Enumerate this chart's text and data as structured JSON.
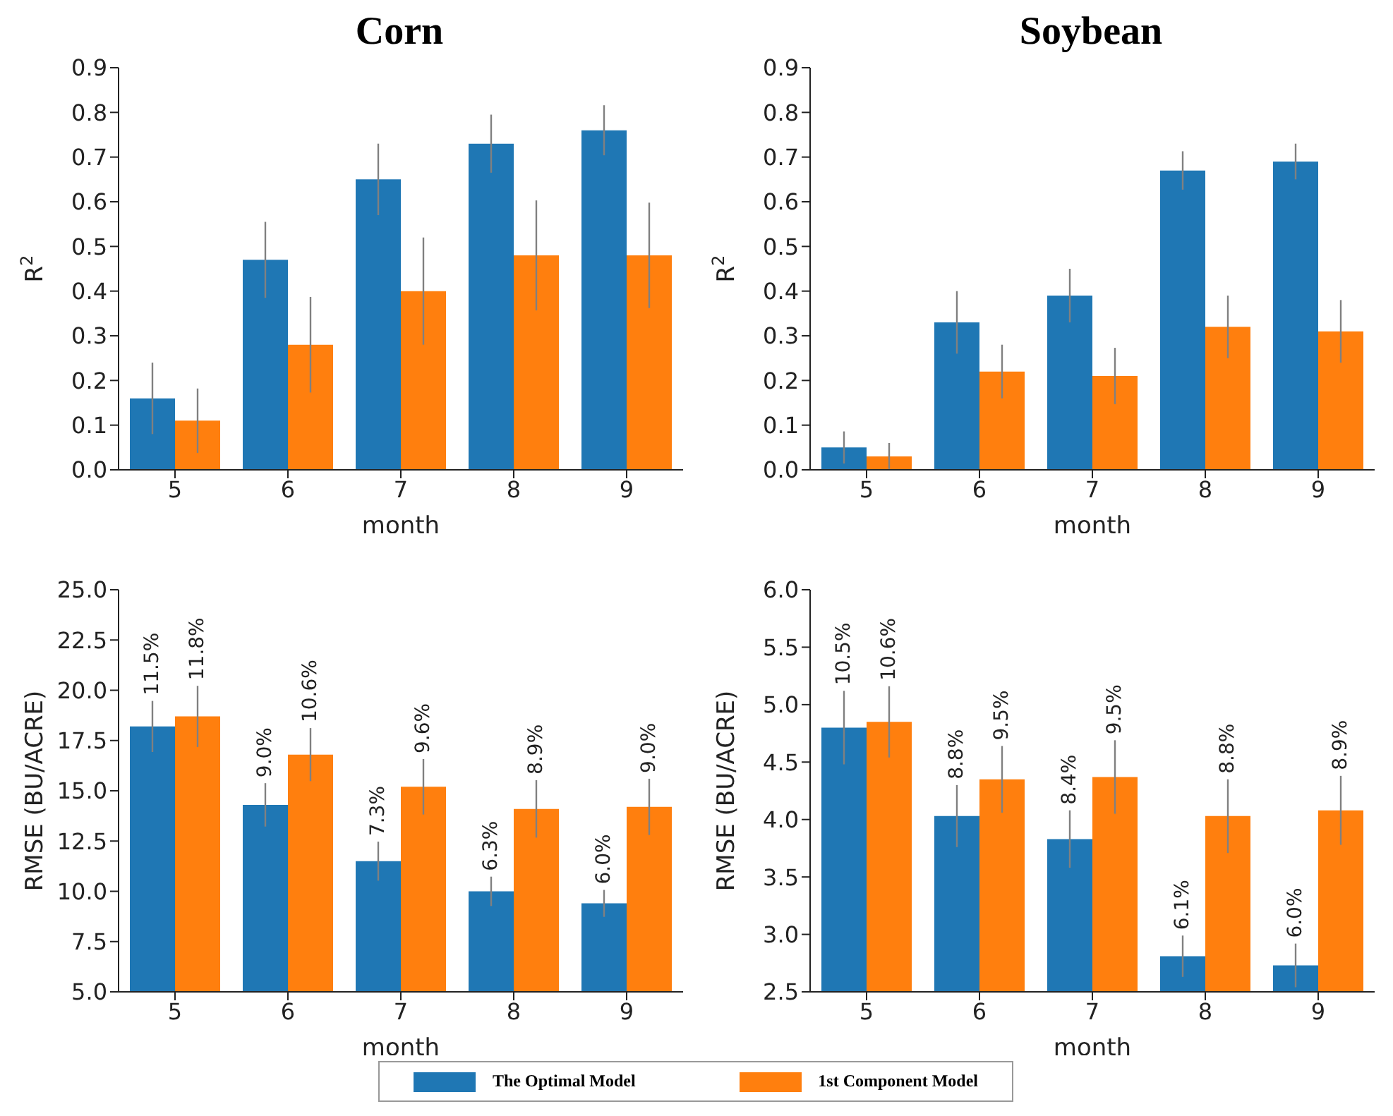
{
  "chart_data": [
    {
      "type": "bar",
      "title": "Corn",
      "xlabel": "month",
      "ylabel": "R$^{2}$",
      "categories": [
        "5",
        "6",
        "7",
        "8",
        "9"
      ],
      "ylim": [
        0,
        0.9
      ],
      "yticks": [
        {
          "value": 0,
          "label": "0.0"
        },
        0.1,
        0.2,
        0.3,
        0.4,
        0.5,
        0.6,
        0.7,
        0.8,
        0.9
      ],
      "series": [
        {
          "color": "#1f77b4",
          "values": [
            0.16,
            0.47,
            0.65,
            0.73,
            0.76
          ],
          "errors": [
            0.08,
            0.085,
            0.08,
            0.065,
            0.056
          ]
        },
        {
          "color": "#ff7f0e",
          "values": [
            0.11,
            0.28,
            0.4,
            0.48,
            0.48
          ],
          "errors": [
            0.072,
            0.107,
            0.12,
            0.123,
            0.118
          ]
        }
      ]
    },
    {
      "type": "bar",
      "title": "Soybean",
      "xlabel": "month",
      "ylabel": "R$^{2}$",
      "categories": [
        "5",
        "6",
        "7",
        "8",
        "9"
      ],
      "ylim": [
        0,
        0.9
      ],
      "yticks": [
        {
          "value": 0,
          "label": "0.0"
        },
        0.1,
        0.2,
        0.3,
        0.4,
        0.5,
        0.6,
        0.7,
        0.8,
        0.9
      ],
      "series": [
        {
          "color": "#1f77b4",
          "values": [
            0.05,
            0.33,
            0.39,
            0.67,
            0.69
          ],
          "errors": [
            0.036,
            0.07,
            0.06,
            0.043,
            0.04
          ]
        },
        {
          "color": "#ff7f0e",
          "values": [
            0.03,
            0.22,
            0.21,
            0.32,
            0.31
          ],
          "errors": [
            0.03,
            0.06,
            0.063,
            0.07,
            0.07
          ]
        }
      ]
    },
    {
      "type": "bar",
      "xlabel": "month",
      "ylabel": "RMSE (BU/ACRE)",
      "categories": [
        "5",
        "6",
        "7",
        "8",
        "9"
      ],
      "annotations": [
        {
          "text": "11.5%",
          "x": "5",
          "y": 18.2
        },
        {
          "text": "9.0%",
          "x": "6",
          "y": 14.3
        },
        {
          "text": "7.3%",
          "x": "7",
          "y": 11.5
        },
        {
          "text": "6.3%",
          "x": "8",
          "y": 10.0
        },
        {
          "text": "6.0%",
          "x": "9",
          "y": 9.4
        },
        {
          "text": "11.8%",
          "x": "5",
          "y": 18.7
        },
        {
          "text": "10.6%",
          "x": "6",
          "y": 16.8
        },
        {
          "text": "9.6%",
          "x": "7",
          "y": 15.2
        },
        {
          "text": "8.9%",
          "x": "8",
          "y": 14.1
        },
        {
          "text": "9.0%",
          "x": "9",
          "y": 14.2
        }
      ],
      "ylim": [
        5,
        25
      ],
      "yticks": [
        {
          "value": 5,
          "label": "5.0"
        },
        {
          "value": 7.5,
          "label": "7.5"
        },
        {
          "value": 10,
          "label": "10.0"
        },
        {
          "value": 12.5,
          "label": "12.5"
        },
        {
          "value": 15,
          "label": "15.0"
        },
        {
          "value": 17.5,
          "label": "17.5"
        },
        {
          "value": 20,
          "label": "20.0"
        },
        {
          "value": 22.5,
          "label": "22.5"
        },
        {
          "value": 25,
          "label": "25.0"
        }
      ],
      "series": [
        {
          "color": "#1f77b4",
          "values": [
            18.2,
            14.3,
            11.5,
            10.0,
            9.4
          ],
          "errors": [
            1.27,
            1.08,
            0.97,
            0.73,
            0.67
          ]
        },
        {
          "color": "#ff7f0e",
          "values": [
            18.7,
            16.8,
            15.2,
            14.1,
            14.2
          ],
          "errors": [
            1.52,
            1.32,
            1.38,
            1.43,
            1.4
          ]
        }
      ]
    },
    {
      "type": "bar",
      "xlabel": "month",
      "ylabel": "RMSE (BU/ACRE)",
      "categories": [
        "5",
        "6",
        "7",
        "8",
        "9"
      ],
      "annotations": [
        {
          "text": "10.5%",
          "x": "5",
          "y": 4.8
        },
        {
          "text": "8.8%",
          "x": "6",
          "y": 4.03
        },
        {
          "text": "8.4%",
          "x": "7",
          "y": 3.83
        },
        {
          "text": "6.1%",
          "x": "8",
          "y": 2.81
        },
        {
          "text": "6.0%",
          "x": "9",
          "y": 2.73
        },
        {
          "text": "10.6%",
          "x": "5",
          "y": 4.85
        },
        {
          "text": "9.5%",
          "x": "6",
          "y": 4.35
        },
        {
          "text": "9.5%",
          "x": "7",
          "y": 4.37
        },
        {
          "text": "8.8%",
          "x": "8",
          "y": 4.03
        },
        {
          "text": "8.9%",
          "x": "9",
          "y": 4.08
        }
      ],
      "ylim": [
        2.5,
        6
      ],
      "yticks": [
        {
          "value": 2.5,
          "label": "2.5"
        },
        {
          "value": 3,
          "label": "3.0"
        },
        {
          "value": 3.5,
          "label": "3.5"
        },
        {
          "value": 4,
          "label": "4.0"
        },
        {
          "value": 4.5,
          "label": "4.5"
        },
        {
          "value": 5,
          "label": "5.0"
        },
        {
          "value": 5.5,
          "label": "5.5"
        },
        {
          "value": 6,
          "label": "6.0"
        }
      ],
      "legend": "bottom",
      "series": [
        {
          "name": "The Optimal Model",
          "color": "#1f77b4",
          "values": [
            4.8,
            4.03,
            3.83,
            2.81,
            2.73
          ],
          "errors": [
            0.32,
            0.27,
            0.25,
            0.18,
            0.19
          ]
        },
        {
          "name": "1st Component Model",
          "color": "#ff7f0e",
          "values": [
            4.85,
            4.35,
            4.37,
            4.03,
            4.08
          ],
          "errors": [
            0.31,
            0.29,
            0.32,
            0.32,
            0.3
          ]
        }
      ]
    }
  ]
}
